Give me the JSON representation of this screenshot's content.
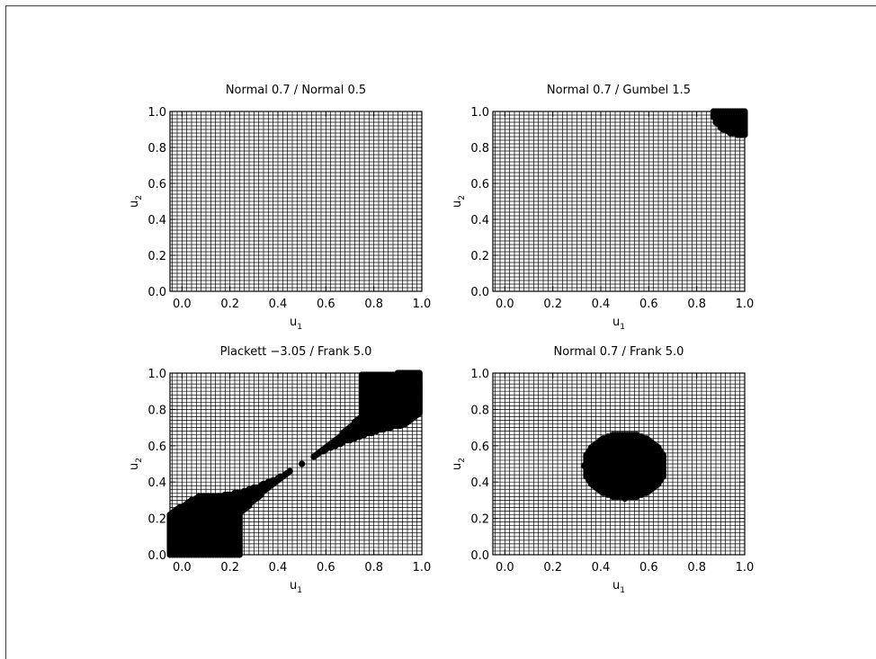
{
  "figure": {
    "background": "#ffffff",
    "foreground": "#000000"
  },
  "chart_data": [
    {
      "type": "heatmap",
      "title": "Normal 0.7 / Normal 0.5",
      "xlabel": "u",
      "xlabel_sub": "1",
      "ylabel": "u",
      "ylabel_sub": "2",
      "xlim": [
        -0.05,
        1.0
      ],
      "ylim": [
        0.0,
        1.0
      ],
      "xticks": [
        "0.0",
        "0.2",
        "0.4",
        "0.6",
        "0.8",
        "1.0"
      ],
      "yticks": [
        "0.0",
        "0.2",
        "0.4",
        "0.6",
        "0.8",
        "1.0"
      ],
      "grid": true,
      "grid_step": 0.02,
      "rejection_region": []
    },
    {
      "type": "heatmap",
      "title": "Normal 0.7 / Gumbel 1.5",
      "xlabel": "u",
      "xlabel_sub": "1",
      "ylabel": "u",
      "ylabel_sub": "2",
      "xlim": [
        -0.05,
        1.0
      ],
      "ylim": [
        0.0,
        1.0
      ],
      "xticks": [
        "0.0",
        "0.2",
        "0.4",
        "0.6",
        "0.8",
        "1.0"
      ],
      "yticks": [
        "0.0",
        "0.2",
        "0.4",
        "0.6",
        "0.8",
        "1.0"
      ],
      "grid": true,
      "grid_step": 0.02,
      "rejection_region": [
        {
          "shape": "circle",
          "cx": 1.0,
          "cy": 1.0,
          "r": 0.135
        }
      ]
    },
    {
      "type": "heatmap",
      "title": "Plackett −3.05 / Frank 5.0",
      "xlabel": "u",
      "xlabel_sub": "1",
      "ylabel": "u",
      "ylabel_sub": "2",
      "xlim": [
        -0.05,
        1.0
      ],
      "ylim": [
        0.0,
        1.0
      ],
      "xticks": [
        "0.0",
        "0.2",
        "0.4",
        "0.6",
        "0.8",
        "1.0"
      ],
      "yticks": [
        "0.0",
        "0.2",
        "0.4",
        "0.6",
        "0.8",
        "1.0"
      ],
      "grid": true,
      "grid_step": 0.02,
      "rejection_region": [
        {
          "shape": "band",
          "points": [
            [
              -0.05,
              0.05
            ],
            [
              0.25,
              0.29
            ],
            [
              0.44,
              0.45
            ],
            [
              0.5,
              0.5
            ],
            [
              0.56,
              0.55
            ],
            [
              0.75,
              0.71
            ],
            [
              1.0,
              0.96
            ]
          ],
          "halfwidth_start": 0.18,
          "halfwidth_mid": 0.0,
          "halfwidth_end": 0.18
        },
        {
          "shape": "rect",
          "x0": -0.05,
          "y0": 0.0,
          "x1": 0.25,
          "y1": 0.22
        },
        {
          "shape": "rect",
          "x0": 0.75,
          "y0": 0.78,
          "x1": 1.0,
          "y1": 1.0
        }
      ]
    },
    {
      "type": "heatmap",
      "title": "Normal 0.7 / Frank 5.0",
      "xlabel": "u",
      "xlabel_sub": "1",
      "ylabel": "u",
      "ylabel_sub": "2",
      "xlim": [
        -0.05,
        1.0
      ],
      "ylim": [
        0.0,
        1.0
      ],
      "xticks": [
        "0.0",
        "0.2",
        "0.4",
        "0.6",
        "0.8",
        "1.0"
      ],
      "yticks": [
        "0.0",
        "0.2",
        "0.4",
        "0.6",
        "0.8",
        "1.0"
      ],
      "grid": true,
      "grid_step": 0.02,
      "rejection_region": [
        {
          "shape": "ellipse",
          "cx": 0.5,
          "cy": 0.49,
          "rx": 0.17,
          "ry": 0.18
        }
      ]
    }
  ]
}
